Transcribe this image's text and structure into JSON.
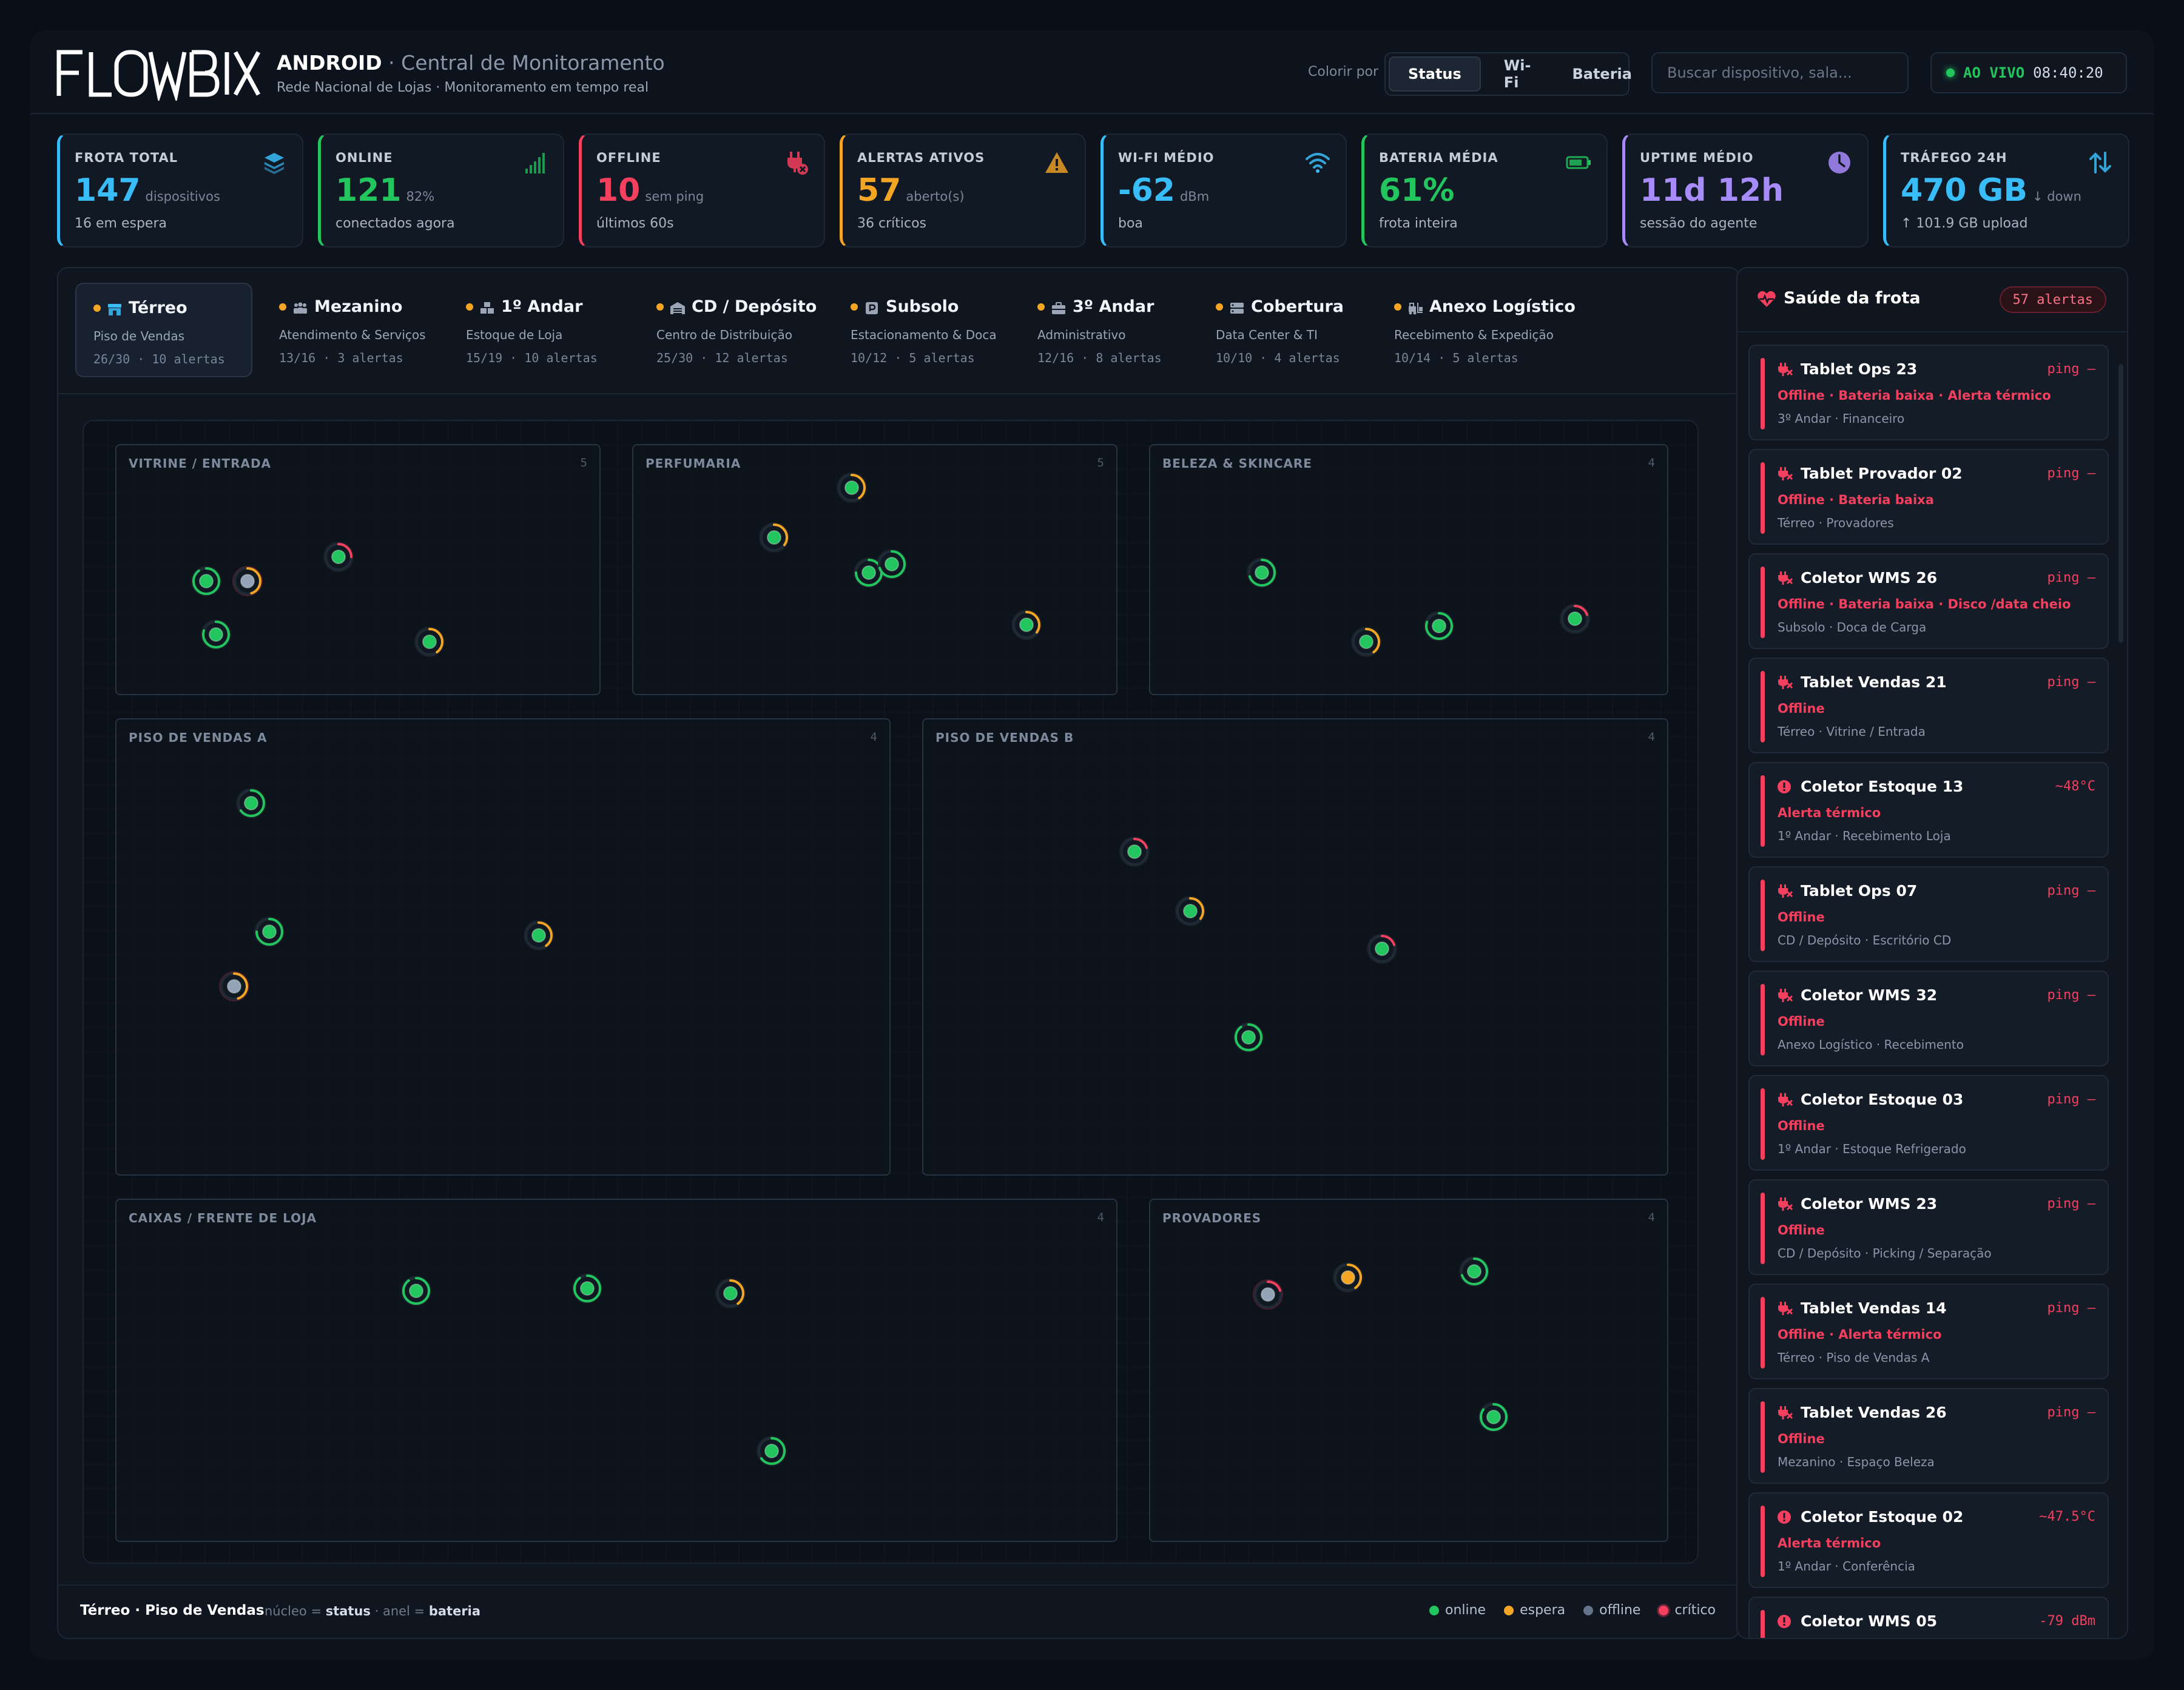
{
  "app": {
    "brand_title": "ANDROID",
    "brand_subtitle": " · Central de Monitoramento",
    "brand_caption": "Rede Nacional de Lojas · Monitoramento em tempo real"
  },
  "toolbar": {
    "color_by_label": "Colorir por",
    "modes": [
      "Status",
      "Wi-Fi",
      "Bateria"
    ],
    "active_mode": "Status",
    "search_placeholder": "Buscar dispositivo, sala...",
    "live_label": "AO VIVO",
    "live_time": "08:40:20"
  },
  "colors": {
    "online": "#22c55e",
    "standby": "#f5a524",
    "offline": "#94a3b8",
    "critical": "#f43f5e",
    "wifi": "#38bdf8",
    "uptime": "#a78bfa"
  },
  "kpis": [
    {
      "label": "FROTA TOTAL",
      "value": "147",
      "unit": "dispositivos",
      "sub": "16 em espera",
      "icon": "layers-icon",
      "color": "#38bdf8"
    },
    {
      "label": "ONLINE",
      "value": "121",
      "unit": "82%",
      "sub": "conectados agora",
      "icon": "signal-bars-icon",
      "color": "#22c55e"
    },
    {
      "label": "OFFLINE",
      "value": "10",
      "unit": "sem ping",
      "sub": "últimos 60s",
      "icon": "unplugged-icon",
      "color": "#f43f5e"
    },
    {
      "label": "ALERTAS ATIVOS",
      "value": "57",
      "unit": "aberto(s)",
      "sub": "36 críticos",
      "icon": "warning-icon",
      "color": "#f5a524"
    },
    {
      "label": "WI-FI MÉDIO",
      "value": "-62",
      "unit": "dBm",
      "sub": "boa",
      "icon": "wifi-icon",
      "color": "#38bdf8"
    },
    {
      "label": "BATERIA MÉDIA",
      "value": "61%",
      "unit": "",
      "sub": "frota inteira",
      "icon": "battery-icon",
      "color": "#22c55e"
    },
    {
      "label": "UPTIME MÉDIO",
      "value": "11d 12h",
      "unit": "",
      "sub": "sessão do agente",
      "icon": "clock-icon",
      "color": "#a78bfa"
    },
    {
      "label": "TRÁFEGO 24H",
      "value": "470 GB",
      "unit": "↓ down",
      "sub": "↑ 101.9 GB upload",
      "icon": "transfer-icon",
      "color": "#38bdf8"
    }
  ],
  "floors": [
    {
      "name": "Térreo",
      "desc": "Piso de Vendas",
      "meta": "26/30 · 10 alertas",
      "icon": "storefront-icon",
      "active": true
    },
    {
      "name": "Mezanino",
      "desc": "Atendimento & Serviços",
      "meta": "13/16 · 3 alertas",
      "icon": "people-icon"
    },
    {
      "name": "1º Andar",
      "desc": "Estoque de Loja",
      "meta": "15/19 · 10 alertas",
      "icon": "boxes-icon"
    },
    {
      "name": "CD / Depósito",
      "desc": "Centro de Distribuição",
      "meta": "25/30 · 12 alertas",
      "icon": "warehouse-icon"
    },
    {
      "name": "Subsolo",
      "desc": "Estacionamento & Doca",
      "meta": "10/12 · 5 alertas",
      "icon": "parking-icon"
    },
    {
      "name": "3º Andar",
      "desc": "Administrativo",
      "meta": "12/16 · 8 alertas",
      "icon": "briefcase-icon"
    },
    {
      "name": "Cobertura",
      "desc": "Data Center & TI",
      "meta": "10/10 · 4 alertas",
      "icon": "server-icon"
    },
    {
      "name": "Anexo Logístico",
      "desc": "Recebimento & Expedição",
      "meta": "10/14 · 5 alertas",
      "icon": "forklift-icon"
    }
  ],
  "rooms": [
    {
      "name": "VITRINE / ENTRADA",
      "count": "5",
      "devices": [
        {
          "status": "online",
          "battery": 0.9
        },
        {
          "status": "offline",
          "battery": 0.45
        },
        {
          "status": "online",
          "battery": 0.25
        },
        {
          "status": "online",
          "battery": 0.8
        },
        {
          "status": "online",
          "battery": 0.4
        }
      ]
    },
    {
      "name": "PERFUMARIA",
      "count": "5",
      "devices": [
        {
          "status": "online",
          "battery": 0.35
        },
        {
          "status": "online",
          "battery": 0.4
        },
        {
          "status": "online",
          "battery": 0.75
        },
        {
          "status": "online",
          "battery": 0.7
        },
        {
          "status": "online",
          "battery": 0.35
        }
      ]
    },
    {
      "name": "BELEZA & SKINCARE",
      "count": "4",
      "devices": [
        {
          "status": "online",
          "battery": 0.7
        },
        {
          "status": "online",
          "battery": 0.4
        },
        {
          "status": "online",
          "battery": 0.8
        },
        {
          "status": "online",
          "battery": 0.2
        }
      ]
    },
    {
      "name": "PISO DE VENDAS A",
      "count": "4",
      "devices": [
        {
          "status": "online",
          "battery": 0.65
        },
        {
          "status": "online",
          "battery": 0.75
        },
        {
          "status": "offline",
          "battery": 0.45
        },
        {
          "status": "online",
          "battery": 0.4
        }
      ]
    },
    {
      "name": "PISO DE VENDAS B",
      "count": "4",
      "devices": [
        {
          "status": "online",
          "battery": 0.2
        },
        {
          "status": "online",
          "battery": 0.35
        },
        {
          "status": "online",
          "battery": 0.2
        },
        {
          "status": "online",
          "battery": 0.9
        }
      ]
    },
    {
      "name": "CAIXAS / FRENTE DE LOJA",
      "count": "4",
      "devices": [
        {
          "status": "online",
          "battery": 0.9
        },
        {
          "status": "online",
          "battery": 0.9
        },
        {
          "status": "online",
          "battery": 0.4
        },
        {
          "status": "online",
          "battery": 0.65
        }
      ]
    },
    {
      "name": "PROVADORES",
      "count": "4",
      "devices": [
        {
          "status": "offline",
          "battery": 0.2
        },
        {
          "status": "standby",
          "battery": 0.4
        },
        {
          "status": "online",
          "battery": 0.7
        },
        {
          "status": "online",
          "battery": 0.85
        }
      ]
    }
  ],
  "footer": {
    "title": "Térreo · Piso de Vendas",
    "legend_nucleo": "núcleo = ",
    "legend_status": "status",
    "legend_anel": " · anel = ",
    "legend_bateria": "bateria",
    "legend": [
      "online",
      "espera",
      "offline",
      "crítico"
    ]
  },
  "sidebar": {
    "title": "Saúde da frota",
    "badge": "57 alertas",
    "alerts": [
      {
        "icon": "unplugged-icon",
        "title": "Tablet Ops 23",
        "value": "ping —",
        "tags": "Offline · Bateria baixa · Alerta térmico",
        "location": "3º Andar · Financeiro"
      },
      {
        "icon": "unplugged-icon",
        "title": "Tablet Provador 02",
        "value": "ping —",
        "tags": "Offline · Bateria baixa",
        "location": "Térreo · Provadores"
      },
      {
        "icon": "unplugged-icon",
        "title": "Coletor WMS 26",
        "value": "ping —",
        "tags": "Offline · Bateria baixa · Disco /data cheio",
        "location": "Subsolo · Doca de Carga"
      },
      {
        "icon": "unplugged-icon",
        "title": "Tablet Vendas 21",
        "value": "ping —",
        "tags": "Offline",
        "location": "Térreo · Vitrine / Entrada"
      },
      {
        "icon": "alert-circle-icon",
        "title": "Coletor Estoque 13",
        "value": "~48°C",
        "tags": "Alerta térmico",
        "location": "1º Andar · Recebimento Loja"
      },
      {
        "icon": "unplugged-icon",
        "title": "Tablet Ops 07",
        "value": "ping —",
        "tags": "Offline",
        "location": "CD / Depósito · Escritório CD"
      },
      {
        "icon": "unplugged-icon",
        "title": "Coletor WMS 32",
        "value": "ping —",
        "tags": "Offline",
        "location": "Anexo Logístico · Recebimento"
      },
      {
        "icon": "unplugged-icon",
        "title": "Coletor Estoque 03",
        "value": "ping —",
        "tags": "Offline",
        "location": "1º Andar · Estoque Refrigerado"
      },
      {
        "icon": "unplugged-icon",
        "title": "Coletor WMS 23",
        "value": "ping —",
        "tags": "Offline",
        "location": "CD / Depósito · Picking / Separação"
      },
      {
        "icon": "unplugged-icon",
        "title": "Tablet Vendas 14",
        "value": "ping —",
        "tags": "Offline · Alerta térmico",
        "location": "Térreo · Piso de Vendas A"
      },
      {
        "icon": "unplugged-icon",
        "title": "Tablet Vendas 26",
        "value": "ping —",
        "tags": "Offline",
        "location": "Mezanino · Espaço Beleza"
      },
      {
        "icon": "alert-circle-icon",
        "title": "Coletor Estoque 02",
        "value": "~47.5°C",
        "tags": "Alerta térmico",
        "location": "1º Andar · Conferência"
      },
      {
        "icon": "alert-circle-icon",
        "title": "Coletor WMS 05",
        "value": "-79 dBm",
        "tags": "",
        "location": ""
      }
    ]
  }
}
